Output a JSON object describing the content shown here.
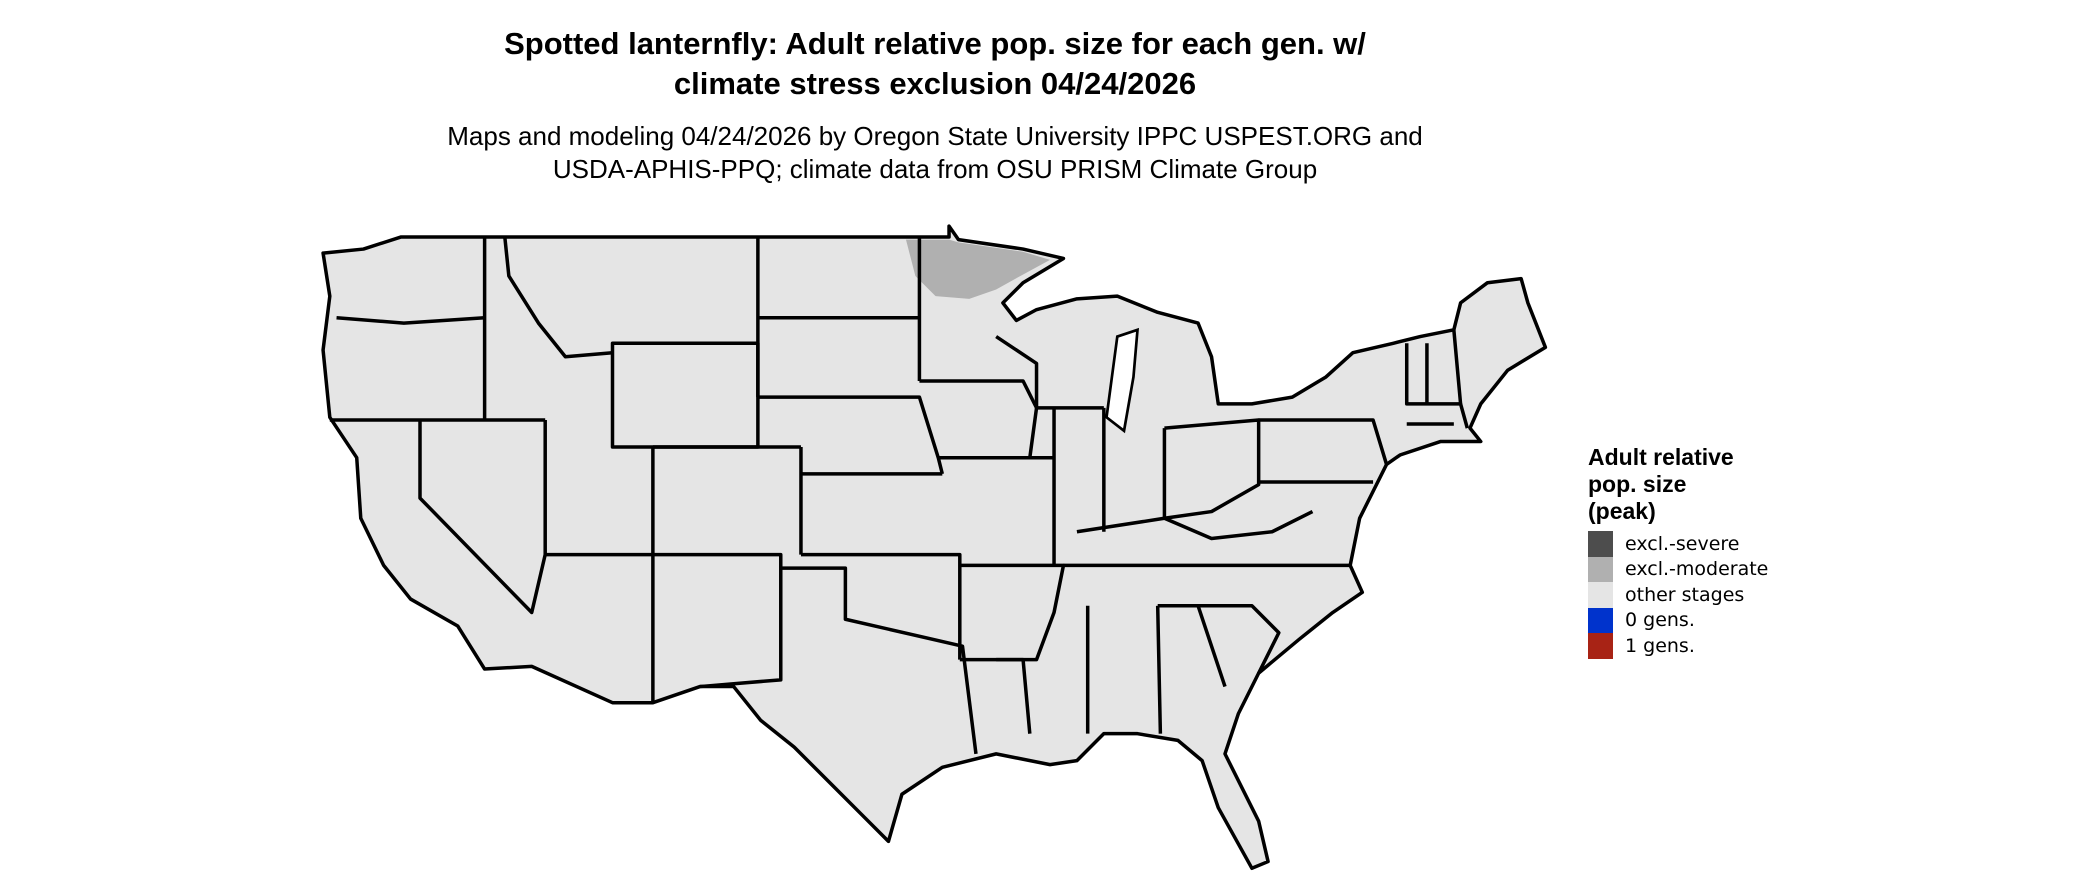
{
  "title": "Spotted lanternfly: Adult relative pop. size for each gen. w/\nclimate stress exclusion 04/24/2026",
  "subtitle": "Maps and modeling 04/24/2026 by Oregon State University IPPC USPEST.ORG and\nUSDA-APHIS-PPQ; climate data from OSU PRISM Climate Group",
  "map": {
    "base_fill": "#e5e5e5",
    "border_color": "#000000",
    "highlight_region": "northern Minnesota",
    "highlight_fill": "#b0b0b0"
  },
  "legend": {
    "title": "Adult relative\npop. size\n(peak)",
    "items": [
      {
        "label": "excl.-severe",
        "color": "#4d4d4d"
      },
      {
        "label": "excl.-moderate",
        "color": "#b0b0b0"
      },
      {
        "label": "other stages",
        "color": "#e5e5e5"
      },
      {
        "label": "0 gens.",
        "color": "#0033cc"
      },
      {
        "label": "1 gens.",
        "color": "#a82315"
      }
    ]
  }
}
